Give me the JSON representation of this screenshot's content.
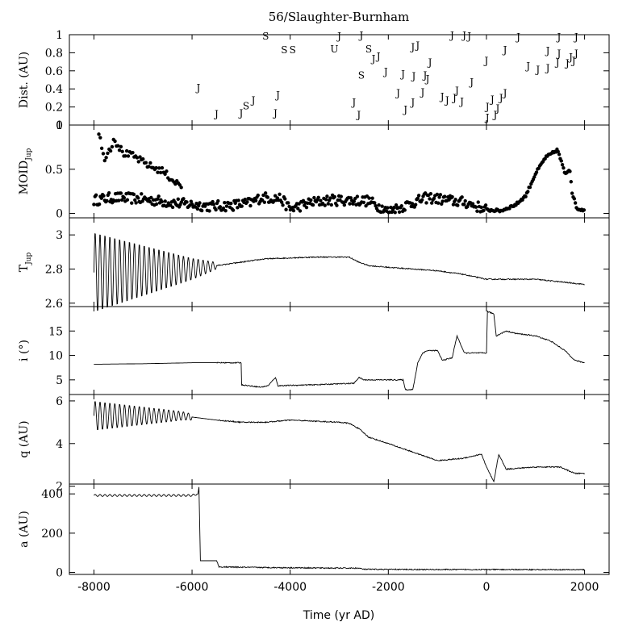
{
  "chart_data": {
    "type": "line",
    "title": "56/Slaughter-Burnham",
    "xlabel": "Time (yr AD)",
    "xlim": [
      -8500,
      2500
    ],
    "x_ticks": [
      -8000,
      -6000,
      -4000,
      -2000,
      0,
      2000
    ],
    "x_tick_labels": [
      "-8000",
      "-6000",
      "-4000",
      "-2000",
      "0",
      "2000"
    ],
    "panels": [
      {
        "id": "dist",
        "type": "scatter-text",
        "ylabel": "Dist. (AU)",
        "ylim": [
          0,
          1
        ],
        "y_ticks": [
          0,
          0.2,
          0.4,
          0.6,
          0.8,
          1
        ],
        "y_tick_labels": [
          "0",
          "0.2",
          "0.4",
          "0.6",
          "0.8",
          "1"
        ],
        "encounters": [
          {
            "x": -5870,
            "y": 0.42,
            "body": "J"
          },
          {
            "x": -5500,
            "y": 0.13,
            "body": "J"
          },
          {
            "x": -5000,
            "y": 0.14,
            "body": "J"
          },
          {
            "x": -4900,
            "y": 0.22,
            "body": "S"
          },
          {
            "x": -4750,
            "y": 0.28,
            "body": "J"
          },
          {
            "x": -4500,
            "y": 0.99,
            "body": "S"
          },
          {
            "x": -4300,
            "y": 0.14,
            "body": "J"
          },
          {
            "x": -4250,
            "y": 0.34,
            "body": "J"
          },
          {
            "x": -4120,
            "y": 0.84,
            "body": "S"
          },
          {
            "x": -3950,
            "y": 0.84,
            "body": "S"
          },
          {
            "x": -3100,
            "y": 0.85,
            "body": "U"
          },
          {
            "x": -3000,
            "y": 0.99,
            "body": "J"
          },
          {
            "x": -2700,
            "y": 0.26,
            "body": "J"
          },
          {
            "x": -2600,
            "y": 0.12,
            "body": "J"
          },
          {
            "x": -2550,
            "y": 1.0,
            "body": "J"
          },
          {
            "x": -2550,
            "y": 0.56,
            "body": "S"
          },
          {
            "x": -2400,
            "y": 0.85,
            "body": "S"
          },
          {
            "x": -2300,
            "y": 0.74,
            "body": "J"
          },
          {
            "x": -2200,
            "y": 0.77,
            "body": "J"
          },
          {
            "x": -2050,
            "y": 0.6,
            "body": "J"
          },
          {
            "x": -1800,
            "y": 0.36,
            "body": "J"
          },
          {
            "x": -1700,
            "y": 0.57,
            "body": "J"
          },
          {
            "x": -1650,
            "y": 0.18,
            "body": "J"
          },
          {
            "x": -1500,
            "y": 0.26,
            "body": "J"
          },
          {
            "x": -1480,
            "y": 0.55,
            "body": "J"
          },
          {
            "x": -1500,
            "y": 0.87,
            "body": "J"
          },
          {
            "x": -1400,
            "y": 0.89,
            "body": "J"
          },
          {
            "x": -1300,
            "y": 0.37,
            "body": "J"
          },
          {
            "x": -1250,
            "y": 0.56,
            "body": "J"
          },
          {
            "x": -1200,
            "y": 0.52,
            "body": "J"
          },
          {
            "x": -1150,
            "y": 0.7,
            "body": "J"
          },
          {
            "x": -900,
            "y": 0.32,
            "body": "J"
          },
          {
            "x": -800,
            "y": 0.28,
            "body": "J"
          },
          {
            "x": -700,
            "y": 1.0,
            "body": "J"
          },
          {
            "x": -650,
            "y": 0.31,
            "body": "J"
          },
          {
            "x": -600,
            "y": 0.39,
            "body": "J"
          },
          {
            "x": -500,
            "y": 0.27,
            "body": "J"
          },
          {
            "x": -450,
            "y": 1.0,
            "body": "J"
          },
          {
            "x": -350,
            "y": 0.99,
            "body": "J"
          },
          {
            "x": -300,
            "y": 0.48,
            "body": "J"
          },
          {
            "x": 0,
            "y": 0.72,
            "body": "J"
          },
          {
            "x": 20,
            "y": 0.21,
            "body": "J"
          },
          {
            "x": 20,
            "y": 0.09,
            "body": "J"
          },
          {
            "x": 120,
            "y": 0.29,
            "body": "J"
          },
          {
            "x": 180,
            "y": 0.12,
            "body": "J"
          },
          {
            "x": 230,
            "y": 0.19,
            "body": "J"
          },
          {
            "x": 300,
            "y": 0.31,
            "body": "J"
          },
          {
            "x": 380,
            "y": 0.36,
            "body": "J"
          },
          {
            "x": 380,
            "y": 0.84,
            "body": "J"
          },
          {
            "x": 650,
            "y": 0.98,
            "body": "J"
          },
          {
            "x": 850,
            "y": 0.66,
            "body": "J"
          },
          {
            "x": 1050,
            "y": 0.62,
            "body": "J"
          },
          {
            "x": 1250,
            "y": 0.64,
            "body": "J"
          },
          {
            "x": 1250,
            "y": 0.83,
            "body": "J"
          },
          {
            "x": 1450,
            "y": 0.7,
            "body": "J"
          },
          {
            "x": 1480,
            "y": 0.8,
            "body": "J"
          },
          {
            "x": 1480,
            "y": 0.98,
            "body": "J"
          },
          {
            "x": 1650,
            "y": 0.69,
            "body": "J"
          },
          {
            "x": 1720,
            "y": 0.76,
            "body": "J"
          },
          {
            "x": 1780,
            "y": 0.72,
            "body": "J"
          },
          {
            "x": 1830,
            "y": 0.8,
            "body": "J"
          },
          {
            "x": 1830,
            "y": 0.98,
            "body": "J"
          }
        ]
      },
      {
        "id": "moid",
        "type": "scatter",
        "ylabel": "MOID",
        "ylabel_sub": "Jup",
        "ylim": [
          -0.05,
          1
        ],
        "y_ticks": [
          0,
          0.5,
          1
        ],
        "y_tick_labels": [
          "0",
          "0.5",
          "1"
        ],
        "keypoints": [
          [
            -8000,
            0.15
          ],
          [
            -7600,
            0.18
          ],
          [
            -7200,
            0.17
          ],
          [
            -6800,
            0.15
          ],
          [
            -6400,
            0.12
          ],
          [
            -6000,
            0.1
          ],
          [
            -5600,
            0.08
          ],
          [
            -5200,
            0.09
          ],
          [
            -4800,
            0.12
          ],
          [
            -4600,
            0.18
          ],
          [
            -4200,
            0.17
          ],
          [
            -4000,
            0.05
          ],
          [
            -3600,
            0.12
          ],
          [
            -3200,
            0.15
          ],
          [
            -2800,
            0.15
          ],
          [
            -2400,
            0.14
          ],
          [
            -2000,
            0.02
          ],
          [
            -1600,
            0.1
          ],
          [
            -1200,
            0.18
          ],
          [
            -800,
            0.15
          ],
          [
            -400,
            0.12
          ],
          [
            0,
            0.04
          ],
          [
            300,
            0.03
          ],
          [
            600,
            0.1
          ],
          [
            800,
            0.2
          ],
          [
            1000,
            0.45
          ],
          [
            1200,
            0.63
          ],
          [
            1450,
            0.72
          ],
          [
            1600,
            0.45
          ],
          [
            1700,
            0.5
          ],
          [
            1750,
            0.22
          ],
          [
            1850,
            0.05
          ],
          [
            2000,
            0.04
          ]
        ],
        "upper_branch": [
          [
            -7900,
            0.93
          ],
          [
            -7800,
            0.62
          ],
          [
            -7650,
            0.75
          ],
          [
            -7600,
            0.85
          ],
          [
            -7400,
            0.68
          ],
          [
            -7200,
            0.65
          ],
          [
            -7000,
            0.58
          ],
          [
            -6800,
            0.52
          ],
          [
            -6600,
            0.48
          ],
          [
            -6400,
            0.38
          ],
          [
            -6200,
            0.3
          ]
        ]
      },
      {
        "id": "tjup",
        "type": "line",
        "ylabel": "T",
        "ylabel_sub": "Jup",
        "ylim": [
          2.58,
          3.1
        ],
        "y_ticks": [
          2.6,
          2.8,
          3
        ],
        "y_tick_labels": [
          "2.6",
          "2.8",
          "3"
        ],
        "baseline": [
          [
            -8000,
            2.78
          ],
          [
            -6000,
            2.8
          ],
          [
            -5500,
            2.82
          ],
          [
            -4500,
            2.86
          ],
          [
            -3500,
            2.87
          ],
          [
            -2800,
            2.87
          ],
          [
            -2600,
            2.84
          ],
          [
            -2400,
            2.82
          ],
          [
            -2000,
            2.81
          ],
          [
            -1000,
            2.79
          ],
          [
            -500,
            2.77
          ],
          [
            0,
            2.74
          ],
          [
            1000,
            2.74
          ],
          [
            2000,
            2.71
          ]
        ],
        "oscillation": {
          "x_start": -8000,
          "x_end": -5500,
          "amplitude_start": 0.24,
          "amplitude_end": 0.02,
          "period": 100
        }
      },
      {
        "id": "incl",
        "type": "line",
        "ylabel": "i (°)",
        "ylim": [
          2,
          20
        ],
        "y_ticks": [
          5,
          10,
          15
        ],
        "y_tick_labels": [
          "5",
          "10",
          "15"
        ],
        "points": [
          [
            -8000,
            8.2
          ],
          [
            -7000,
            8.3
          ],
          [
            -6000,
            8.5
          ],
          [
            -5000,
            8.5
          ],
          [
            -5000,
            4.0
          ],
          [
            -4600,
            3.5
          ],
          [
            -4450,
            3.8
          ],
          [
            -4300,
            5.5
          ],
          [
            -4250,
            3.8
          ],
          [
            -3500,
            4.0
          ],
          [
            -2700,
            4.3
          ],
          [
            -2600,
            5.5
          ],
          [
            -2500,
            5.0
          ],
          [
            -1700,
            5.0
          ],
          [
            -1650,
            3.0
          ],
          [
            -1500,
            3.0
          ],
          [
            -1400,
            8.5
          ],
          [
            -1300,
            10.5
          ],
          [
            -1200,
            11.0
          ],
          [
            -1000,
            11.0
          ],
          [
            -900,
            9.0
          ],
          [
            -700,
            9.5
          ],
          [
            -600,
            14.0
          ],
          [
            -450,
            10.5
          ],
          [
            -100,
            10.5
          ],
          [
            0,
            10.5
          ],
          [
            20,
            19.0
          ],
          [
            150,
            18.5
          ],
          [
            200,
            14.0
          ],
          [
            400,
            15.0
          ],
          [
            600,
            14.5
          ],
          [
            1000,
            14.0
          ],
          [
            1300,
            13.0
          ],
          [
            1600,
            11.0
          ],
          [
            1800,
            9.0
          ],
          [
            2000,
            8.5
          ]
        ]
      },
      {
        "id": "q",
        "type": "line",
        "ylabel": "q (AU)",
        "ylim": [
          2.1,
          6.3
        ],
        "y_ticks": [
          2,
          4,
          6
        ],
        "y_tick_labels": [
          "2",
          "4",
          "6"
        ],
        "baseline": [
          [
            -8000,
            5.3
          ],
          [
            -6200,
            5.3
          ],
          [
            -5500,
            5.1
          ],
          [
            -5000,
            5.0
          ],
          [
            -4500,
            5.0
          ],
          [
            -4000,
            5.1
          ],
          [
            -3000,
            5.0
          ],
          [
            -2800,
            4.95
          ],
          [
            -2600,
            4.7
          ],
          [
            -2400,
            4.3
          ],
          [
            -2000,
            4.0
          ],
          [
            -1500,
            3.6
          ],
          [
            -1000,
            3.2
          ],
          [
            -500,
            3.3
          ],
          [
            -100,
            3.5
          ],
          [
            0,
            2.9
          ],
          [
            150,
            2.2
          ],
          [
            250,
            3.5
          ],
          [
            400,
            2.8
          ],
          [
            1000,
            2.9
          ],
          [
            1500,
            2.9
          ],
          [
            1800,
            2.6
          ],
          [
            2000,
            2.6
          ]
        ],
        "oscillation": {
          "x_start": -8000,
          "x_end": -6000,
          "amplitude_start": 0.7,
          "amplitude_end": 0.15,
          "period": 100
        }
      },
      {
        "id": "a",
        "type": "line",
        "ylabel": "a (AU)",
        "ylim": [
          -10,
          450
        ],
        "y_ticks": [
          0,
          200,
          400
        ],
        "y_tick_labels": [
          "0",
          "200",
          "400"
        ],
        "points": [
          [
            -8000,
            392
          ],
          [
            -6000,
            392
          ],
          [
            -5880,
            400
          ],
          [
            -5860,
            435
          ],
          [
            -5830,
            60
          ],
          [
            -5500,
            60
          ],
          [
            -5450,
            28
          ],
          [
            -4500,
            25
          ],
          [
            -3000,
            22
          ],
          [
            -2600,
            22
          ],
          [
            -2500,
            16
          ],
          [
            -1000,
            15
          ],
          [
            0,
            15
          ],
          [
            2000,
            14
          ]
        ],
        "oscillation": {
          "x_start": -8000,
          "x_end": -5900,
          "amplitude_start": 5,
          "amplitude_end": 5,
          "period": 100
        }
      }
    ]
  }
}
